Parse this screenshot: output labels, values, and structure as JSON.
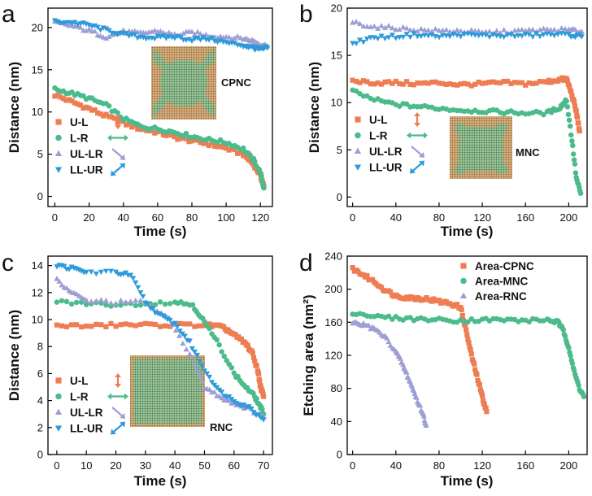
{
  "series_styles": {
    "U-L": {
      "color": "#ee7d53",
      "marker": "square"
    },
    "L-R": {
      "color": "#4cbb8b",
      "marker": "circle"
    },
    "UL-LR": {
      "color": "#9d9ed3",
      "marker": "triangle-up"
    },
    "LL-UR": {
      "color": "#2d9ad9",
      "marker": "triangle-down"
    },
    "Area-CPNC": {
      "color": "#ee7d53",
      "marker": "square"
    },
    "Area-MNC": {
      "color": "#4cbb8b",
      "marker": "circle"
    },
    "Area-RNC": {
      "color": "#9d9ed3",
      "marker": "triangle-up"
    }
  },
  "chart_data": [
    {
      "panel": "a",
      "type": "scatter",
      "xlabel": "Time (s)",
      "ylabel": "Distance (nm)",
      "xlim": [
        -4,
        127
      ],
      "ylim": [
        -1.2,
        22.3
      ],
      "xticks": [
        0,
        20,
        40,
        60,
        80,
        100,
        120
      ],
      "yticks": [
        0,
        5,
        10,
        15,
        20
      ],
      "legend_position": "bottom-left",
      "inset_label": "CPNC",
      "series": [
        {
          "name": "U-L",
          "points": [
            [
              0,
              12.0
            ],
            [
              10,
              11.2
            ],
            [
              20,
              10.4
            ],
            [
              30,
              9.5
            ],
            [
              40,
              8.7
            ],
            [
              50,
              8.0
            ],
            [
              60,
              7.6
            ],
            [
              70,
              7.0
            ],
            [
              80,
              6.6
            ],
            [
              90,
              6.2
            ],
            [
              100,
              5.7
            ],
            [
              110,
              5.0
            ],
            [
              116,
              3.8
            ],
            [
              120,
              2.5
            ],
            [
              122,
              1.2
            ]
          ]
        },
        {
          "name": "L-R",
          "points": [
            [
              0,
              12.7
            ],
            [
              10,
              12.2
            ],
            [
              20,
              11.6
            ],
            [
              30,
              10.8
            ],
            [
              40,
              9.2
            ],
            [
              50,
              8.3
            ],
            [
              60,
              8.0
            ],
            [
              70,
              7.6
            ],
            [
              80,
              7.1
            ],
            [
              90,
              6.7
            ],
            [
              100,
              6.4
            ],
            [
              110,
              5.6
            ],
            [
              116,
              4.3
            ],
            [
              120,
              2.8
            ],
            [
              122,
              1.0
            ]
          ]
        },
        {
          "name": "UL-LR",
          "points": [
            [
              0,
              20.6
            ],
            [
              10,
              20.2
            ],
            [
              20,
              19.6
            ],
            [
              30,
              18.9
            ],
            [
              40,
              19.5
            ],
            [
              50,
              19.3
            ],
            [
              60,
              19.6
            ],
            [
              70,
              19.1
            ],
            [
              80,
              19.4
            ],
            [
              90,
              19.0
            ],
            [
              100,
              18.9
            ],
            [
              110,
              18.7
            ],
            [
              116,
              18.4
            ],
            [
              120,
              18.0
            ],
            [
              124,
              17.8
            ]
          ]
        },
        {
          "name": "LL-UR",
          "points": [
            [
              0,
              20.7
            ],
            [
              10,
              20.6
            ],
            [
              20,
              20.3
            ],
            [
              30,
              19.7
            ],
            [
              40,
              19.2
            ],
            [
              50,
              18.9
            ],
            [
              60,
              18.8
            ],
            [
              70,
              18.9
            ],
            [
              80,
              18.6
            ],
            [
              90,
              18.7
            ],
            [
              100,
              18.2
            ],
            [
              110,
              17.9
            ],
            [
              116,
              17.6
            ],
            [
              120,
              17.4
            ],
            [
              124,
              17.6
            ]
          ]
        }
      ]
    },
    {
      "panel": "b",
      "type": "scatter",
      "xlabel": "Time (s)",
      "ylabel": "Distance (nm)",
      "xlim": [
        -5,
        217
      ],
      "ylim": [
        -1.0,
        20.0
      ],
      "xticks": [
        0,
        40,
        80,
        120,
        160,
        200
      ],
      "yticks": [
        0,
        5,
        10,
        15,
        20
      ],
      "legend_position": "bottom-left",
      "inset_label": "MNC",
      "series": [
        {
          "name": "U-L",
          "points": [
            [
              0,
              12.3
            ],
            [
              20,
              12.1
            ],
            [
              40,
              12.1
            ],
            [
              60,
              12.0
            ],
            [
              80,
              12.1
            ],
            [
              100,
              11.9
            ],
            [
              120,
              12.0
            ],
            [
              140,
              12.1
            ],
            [
              160,
              12.0
            ],
            [
              180,
              12.2
            ],
            [
              190,
              12.4
            ],
            [
              198,
              12.5
            ],
            [
              203,
              10.8
            ],
            [
              207,
              9.0
            ],
            [
              210,
              7.0
            ]
          ]
        },
        {
          "name": "L-R",
          "points": [
            [
              0,
              11.2
            ],
            [
              20,
              10.3
            ],
            [
              40,
              9.8
            ],
            [
              60,
              9.6
            ],
            [
              80,
              9.4
            ],
            [
              100,
              9.2
            ],
            [
              120,
              9.1
            ],
            [
              140,
              9.0
            ],
            [
              160,
              8.9
            ],
            [
              180,
              8.9
            ],
            [
              192,
              9.5
            ],
            [
              198,
              10.3
            ],
            [
              203,
              6.0
            ],
            [
              207,
              2.0
            ],
            [
              211,
              0.4
            ]
          ]
        },
        {
          "name": "UL-LR",
          "points": [
            [
              0,
              18.5
            ],
            [
              20,
              18.0
            ],
            [
              40,
              17.9
            ],
            [
              60,
              17.7
            ],
            [
              80,
              17.6
            ],
            [
              100,
              17.6
            ],
            [
              120,
              17.4
            ],
            [
              140,
              17.5
            ],
            [
              160,
              17.6
            ],
            [
              180,
              17.7
            ],
            [
              200,
              17.7
            ],
            [
              212,
              17.5
            ]
          ]
        },
        {
          "name": "LL-UR",
          "points": [
            [
              0,
              16.3
            ],
            [
              20,
              16.9
            ],
            [
              40,
              17.0
            ],
            [
              60,
              17.2
            ],
            [
              80,
              17.0
            ],
            [
              100,
              17.2
            ],
            [
              120,
              17.1
            ],
            [
              140,
              17.1
            ],
            [
              160,
              17.1
            ],
            [
              180,
              17.2
            ],
            [
              200,
              17.2
            ],
            [
              212,
              17.0
            ]
          ]
        }
      ]
    },
    {
      "panel": "c",
      "type": "scatter",
      "xlabel": "Time (s)",
      "ylabel": "Distance (nm)",
      "xlim": [
        -3,
        73
      ],
      "ylim": [
        0,
        14.7
      ],
      "xticks": [
        0,
        10,
        20,
        30,
        40,
        50,
        60,
        70
      ],
      "yticks": [
        0,
        2,
        4,
        6,
        8,
        10,
        12,
        14
      ],
      "legend_position": "bottom-left",
      "inset_label": "RNC",
      "series": [
        {
          "name": "U-L",
          "points": [
            [
              0,
              9.6
            ],
            [
              10,
              9.5
            ],
            [
              20,
              9.6
            ],
            [
              30,
              9.6
            ],
            [
              40,
              9.6
            ],
            [
              50,
              9.6
            ],
            [
              55,
              9.5
            ],
            [
              58,
              9.2
            ],
            [
              61,
              8.7
            ],
            [
              64,
              8.2
            ],
            [
              66,
              7.6
            ],
            [
              68,
              6.3
            ],
            [
              69,
              5.0
            ],
            [
              70,
              4.3
            ]
          ]
        },
        {
          "name": "L-R",
          "points": [
            [
              0,
              11.3
            ],
            [
              10,
              11.2
            ],
            [
              20,
              11.1
            ],
            [
              30,
              11.2
            ],
            [
              40,
              11.3
            ],
            [
              46,
              11.1
            ],
            [
              50,
              9.8
            ],
            [
              55,
              8.1
            ],
            [
              60,
              6.0
            ],
            [
              64,
              5.0
            ],
            [
              67,
              4.3
            ],
            [
              69,
              3.5
            ],
            [
              70,
              3.0
            ]
          ]
        },
        {
          "name": "UL-LR",
          "points": [
            [
              0,
              12.9
            ],
            [
              5,
              12.0
            ],
            [
              10,
              11.4
            ],
            [
              20,
              11.3
            ],
            [
              30,
              11.3
            ],
            [
              38,
              10.0
            ],
            [
              45,
              7.5
            ],
            [
              50,
              5.0
            ],
            [
              55,
              4.3
            ],
            [
              60,
              3.8
            ],
            [
              65,
              3.4
            ],
            [
              70,
              2.8
            ]
          ]
        },
        {
          "name": "LL-UR",
          "points": [
            [
              0,
              14.0
            ],
            [
              5,
              13.8
            ],
            [
              10,
              13.5
            ],
            [
              20,
              13.5
            ],
            [
              25,
              13.3
            ],
            [
              30,
              11.3
            ],
            [
              35,
              10.3
            ],
            [
              40,
              9.7
            ],
            [
              45,
              8.3
            ],
            [
              50,
              6.3
            ],
            [
              55,
              4.7
            ],
            [
              60,
              4.0
            ],
            [
              65,
              3.5
            ],
            [
              70,
              2.6
            ]
          ]
        }
      ]
    },
    {
      "panel": "d",
      "type": "scatter",
      "xlabel": "Time (s)",
      "ylabel": "Etching area (nm²)",
      "xlim": [
        -5,
        217
      ],
      "ylim": [
        0,
        240
      ],
      "xticks": [
        0,
        40,
        80,
        120,
        160,
        200
      ],
      "yticks": [
        0,
        40,
        80,
        120,
        160,
        200,
        240
      ],
      "legend_position": "top-right",
      "series": [
        {
          "name": "Area-CPNC",
          "points": [
            [
              0,
              225
            ],
            [
              10,
              217
            ],
            [
              20,
              209
            ],
            [
              30,
              199
            ],
            [
              40,
              192
            ],
            [
              50,
              190
            ],
            [
              60,
              189
            ],
            [
              70,
              188
            ],
            [
              80,
              185
            ],
            [
              90,
              183
            ],
            [
              100,
              178
            ],
            [
              105,
              150
            ],
            [
              110,
              120
            ],
            [
              115,
              95
            ],
            [
              120,
              70
            ],
            [
              124,
              52
            ]
          ]
        },
        {
          "name": "Area-MNC",
          "points": [
            [
              0,
              172
            ],
            [
              20,
              167
            ],
            [
              40,
              165
            ],
            [
              60,
              164
            ],
            [
              80,
              163
            ],
            [
              100,
              162
            ],
            [
              120,
              163
            ],
            [
              140,
              163
            ],
            [
              160,
              162
            ],
            [
              180,
              163
            ],
            [
              190,
              160
            ],
            [
              195,
              150
            ],
            [
              200,
              130
            ],
            [
              205,
              100
            ],
            [
              210,
              80
            ],
            [
              214,
              70
            ]
          ]
        },
        {
          "name": "Area-RNC",
          "points": [
            [
              0,
              160
            ],
            [
              10,
              157
            ],
            [
              20,
              152
            ],
            [
              30,
              142
            ],
            [
              40,
              125
            ],
            [
              45,
              112
            ],
            [
              50,
              98
            ],
            [
              55,
              82
            ],
            [
              60,
              65
            ],
            [
              65,
              50
            ],
            [
              68,
              35
            ]
          ]
        }
      ]
    }
  ]
}
